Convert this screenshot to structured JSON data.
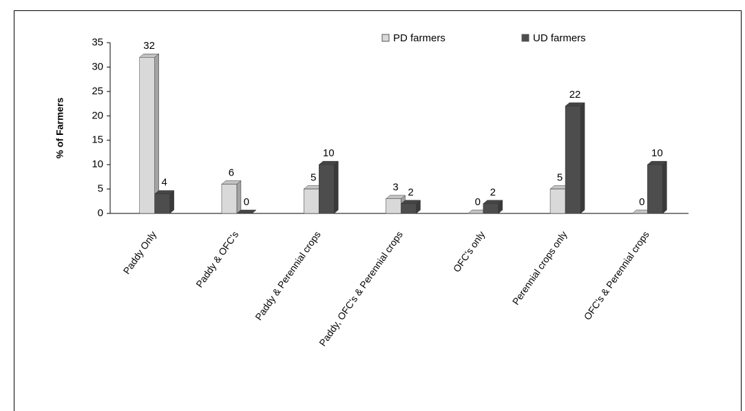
{
  "chart_data": {
    "type": "bar",
    "y_label": "% of Farmers",
    "categories": [
      "Paddy Only",
      "Paddy & OFC's",
      "Paddy & Perennial crops",
      "Paddy, OFC's & Perennial crops",
      "OFC's only",
      "Perennial crops only",
      "OFC's & Perennial crops"
    ],
    "series": [
      {
        "name": "PD farmers",
        "color": "#d9d9d9",
        "values": [
          32,
          6,
          5,
          3,
          0,
          5,
          0
        ]
      },
      {
        "name": "UD farmers",
        "color": "#4d4d4d",
        "values": [
          4,
          0,
          10,
          2,
          2,
          22,
          10
        ]
      }
    ],
    "ylim": [
      0,
      35
    ],
    "yticks": [
      0,
      5,
      10,
      15,
      20,
      25,
      30,
      35
    ]
  }
}
